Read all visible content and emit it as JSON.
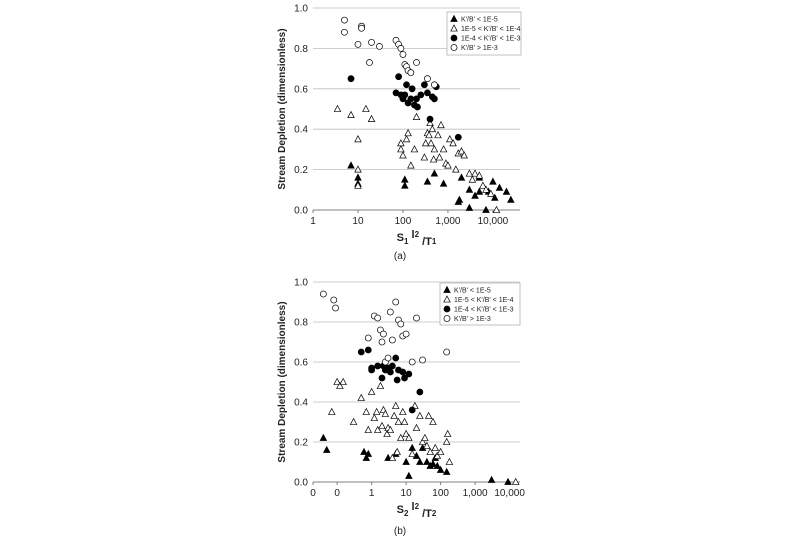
{
  "chart_data": [
    {
      "panel": "(a)",
      "type": "scatter",
      "xscale": "log",
      "xlim": [
        1,
        40000
      ],
      "ylim": [
        0,
        1.0
      ],
      "grid": true,
      "legend_position": "top-right",
      "ylabel": "Stream Depletion (dimensionless)",
      "xlabel": {
        "a": "S",
        "sub1": "1",
        "b": " l",
        "sup": "2",
        "c": " /T",
        "sub2": "1"
      },
      "xticks": [
        {
          "v": 1,
          "label": "1"
        },
        {
          "v": 10,
          "label": "10"
        },
        {
          "v": 100,
          "label": "100"
        },
        {
          "v": 1000,
          "label": "1,000"
        },
        {
          "v": 10000,
          "label": "10,000"
        }
      ],
      "yticks": [
        {
          "v": 0,
          "label": "0.0"
        },
        {
          "v": 0.2,
          "label": "0.2"
        },
        {
          "v": 0.4,
          "label": "0.4"
        },
        {
          "v": 0.6,
          "label": "0.6"
        },
        {
          "v": 0.8,
          "label": "0.8"
        },
        {
          "v": 1.0,
          "label": "1.0"
        }
      ],
      "series": [
        {
          "name": "K'/B' < 1E-5",
          "marker": "triangle-filled",
          "points": [
            [
              7,
              0.22
            ],
            [
              10,
              0.16
            ],
            [
              10,
              0.13
            ],
            [
              110,
              0.15
            ],
            [
              110,
              0.12
            ],
            [
              350,
              0.14
            ],
            [
              500,
              0.18
            ],
            [
              800,
              0.13
            ],
            [
              1700,
              0.04
            ],
            [
              1800,
              0.05
            ],
            [
              2000,
              0.16
            ],
            [
              3000,
              0.1
            ],
            [
              3000,
              0.01
            ],
            [
              4000,
              0.07
            ],
            [
              5000,
              0.09
            ],
            [
              5000,
              0.16
            ],
            [
              7000,
              0.0
            ],
            [
              8000,
              0.09
            ],
            [
              10000,
              0.14
            ],
            [
              11000,
              0.06
            ],
            [
              14000,
              0.11
            ],
            [
              20000,
              0.09
            ],
            [
              25000,
              0.05
            ]
          ]
        },
        {
          "name": "1E-5 < K'/B' < 1E-4",
          "marker": "triangle-open",
          "points": [
            [
              3.5,
              0.5
            ],
            [
              7,
              0.47
            ],
            [
              10,
              0.35
            ],
            [
              10,
              0.12
            ],
            [
              10,
              0.2
            ],
            [
              15,
              0.5
            ],
            [
              20,
              0.45
            ],
            [
              90,
              0.33
            ],
            [
              90,
              0.3
            ],
            [
              100,
              0.27
            ],
            [
              120,
              0.35
            ],
            [
              130,
              0.38
            ],
            [
              150,
              0.22
            ],
            [
              180,
              0.3
            ],
            [
              200,
              0.46
            ],
            [
              300,
              0.26
            ],
            [
              320,
              0.33
            ],
            [
              350,
              0.38
            ],
            [
              380,
              0.37
            ],
            [
              400,
              0.43
            ],
            [
              420,
              0.33
            ],
            [
              450,
              0.4
            ],
            [
              480,
              0.25
            ],
            [
              500,
              0.3
            ],
            [
              600,
              0.37
            ],
            [
              650,
              0.26
            ],
            [
              700,
              0.42
            ],
            [
              800,
              0.3
            ],
            [
              900,
              0.23
            ],
            [
              1000,
              0.22
            ],
            [
              1100,
              0.35
            ],
            [
              1300,
              0.33
            ],
            [
              1500,
              0.2
            ],
            [
              1700,
              0.28
            ],
            [
              2000,
              0.29
            ],
            [
              2300,
              0.27
            ],
            [
              3000,
              0.18
            ],
            [
              3500,
              0.15
            ],
            [
              4000,
              0.18
            ],
            [
              5000,
              0.17
            ],
            [
              6000,
              0.12
            ],
            [
              7000,
              0.1
            ],
            [
              9000,
              0.08
            ],
            [
              12000,
              0.0
            ]
          ]
        },
        {
          "name": "1E-4 < K'/B' < 1E-3",
          "marker": "circle-filled",
          "points": [
            [
              7,
              0.65
            ],
            [
              70,
              0.58
            ],
            [
              80,
              0.66
            ],
            [
              90,
              0.57
            ],
            [
              100,
              0.55
            ],
            [
              110,
              0.57
            ],
            [
              120,
              0.62
            ],
            [
              130,
              0.53
            ],
            [
              150,
              0.55
            ],
            [
              160,
              0.6
            ],
            [
              180,
              0.52
            ],
            [
              200,
              0.55
            ],
            [
              210,
              0.51
            ],
            [
              250,
              0.57
            ],
            [
              300,
              0.62
            ],
            [
              350,
              0.58
            ],
            [
              400,
              0.45
            ],
            [
              450,
              0.56
            ],
            [
              500,
              0.55
            ],
            [
              550,
              0.61
            ],
            [
              1700,
              0.36
            ]
          ]
        },
        {
          "name": "K'/B' > 1E-3",
          "marker": "circle-open",
          "points": [
            [
              5,
              0.94
            ],
            [
              5,
              0.88
            ],
            [
              10,
              0.82
            ],
            [
              12,
              0.91
            ],
            [
              12,
              0.9
            ],
            [
              18,
              0.73
            ],
            [
              20,
              0.83
            ],
            [
              30,
              0.81
            ],
            [
              70,
              0.84
            ],
            [
              80,
              0.82
            ],
            [
              90,
              0.8
            ],
            [
              100,
              0.77
            ],
            [
              110,
              0.72
            ],
            [
              120,
              0.71
            ],
            [
              130,
              0.69
            ],
            [
              150,
              0.68
            ],
            [
              200,
              0.73
            ],
            [
              350,
              0.65
            ],
            [
              500,
              0.62
            ]
          ]
        }
      ]
    },
    {
      "panel": "(b)",
      "type": "scatter",
      "xscale": "log",
      "xlim": [
        0.02,
        20000
      ],
      "ylim": [
        0,
        1.0
      ],
      "grid": true,
      "legend_position": "top-right",
      "ylabel": "Stream Depletion (dimensionless)",
      "xlabel": {
        "a": "S",
        "sub1": "2",
        "b": " l",
        "sup": "2",
        "c": " /T",
        "sub2": "2"
      },
      "xticks": [
        {
          "v": 0.02,
          "label": "0"
        },
        {
          "v": 0.1,
          "label": "0"
        },
        {
          "v": 1,
          "label": "1"
        },
        {
          "v": 10,
          "label": "10"
        },
        {
          "v": 100,
          "label": "100"
        },
        {
          "v": 1000,
          "label": "1,000"
        },
        {
          "v": 10000,
          "label": "10,000"
        }
      ],
      "yticks": [
        {
          "v": 0,
          "label": "0.0"
        },
        {
          "v": 0.2,
          "label": "0.2"
        },
        {
          "v": 0.4,
          "label": "0.4"
        },
        {
          "v": 0.6,
          "label": "0.6"
        },
        {
          "v": 0.8,
          "label": "0.8"
        },
        {
          "v": 1.0,
          "label": "1.0"
        }
      ],
      "series": [
        {
          "name": "K'/B' < 1E-5",
          "marker": "triangle-filled",
          "points": [
            [
              0.04,
              0.22
            ],
            [
              0.05,
              0.16
            ],
            [
              0.6,
              0.15
            ],
            [
              0.8,
              0.14
            ],
            [
              0.7,
              0.12
            ],
            [
              3,
              0.12
            ],
            [
              5,
              0.14
            ],
            [
              10,
              0.1
            ],
            [
              12,
              0.03
            ],
            [
              15,
              0.17
            ],
            [
              20,
              0.13
            ],
            [
              25,
              0.1
            ],
            [
              30,
              0.17
            ],
            [
              40,
              0.1
            ],
            [
              50,
              0.08
            ],
            [
              60,
              0.09
            ],
            [
              70,
              0.12
            ],
            [
              80,
              0.08
            ],
            [
              100,
              0.06
            ],
            [
              150,
              0.05
            ],
            [
              3000,
              0.01
            ],
            [
              9000,
              0.0
            ]
          ]
        },
        {
          "name": "1E-5 < K'/B' < 1E-4",
          "marker": "triangle-open",
          "points": [
            [
              0.07,
              0.35
            ],
            [
              0.1,
              0.5
            ],
            [
              0.12,
              0.48
            ],
            [
              0.15,
              0.5
            ],
            [
              0.3,
              0.3
            ],
            [
              0.5,
              0.42
            ],
            [
              0.7,
              0.35
            ],
            [
              0.8,
              0.26
            ],
            [
              1,
              0.45
            ],
            [
              1.2,
              0.32
            ],
            [
              1.4,
              0.35
            ],
            [
              1.5,
              0.26
            ],
            [
              1.8,
              0.48
            ],
            [
              2,
              0.28
            ],
            [
              2.2,
              0.36
            ],
            [
              2.5,
              0.34
            ],
            [
              2.8,
              0.24
            ],
            [
              3,
              0.27
            ],
            [
              3.5,
              0.26
            ],
            [
              4,
              0.12
            ],
            [
              4.5,
              0.33
            ],
            [
              5,
              0.38
            ],
            [
              5.5,
              0.15
            ],
            [
              6,
              0.3
            ],
            [
              7,
              0.22
            ],
            [
              8,
              0.35
            ],
            [
              9,
              0.3
            ],
            [
              10,
              0.24
            ],
            [
              12,
              0.22
            ],
            [
              15,
              0.14
            ],
            [
              18,
              0.38
            ],
            [
              20,
              0.27
            ],
            [
              25,
              0.33
            ],
            [
              30,
              0.2
            ],
            [
              35,
              0.22
            ],
            [
              40,
              0.18
            ],
            [
              45,
              0.33
            ],
            [
              50,
              0.15
            ],
            [
              60,
              0.3
            ],
            [
              70,
              0.17
            ],
            [
              80,
              0.13
            ],
            [
              100,
              0.15
            ],
            [
              150,
              0.2
            ],
            [
              160,
              0.24
            ],
            [
              180,
              0.1
            ],
            [
              15000,
              0.0
            ]
          ]
        },
        {
          "name": "1E-4 < K'/B' < 1E-3",
          "marker": "circle-filled",
          "points": [
            [
              0.5,
              0.65
            ],
            [
              0.8,
              0.66
            ],
            [
              1,
              0.57
            ],
            [
              1,
              0.56
            ],
            [
              1.5,
              0.58
            ],
            [
              2,
              0.52
            ],
            [
              2.2,
              0.58
            ],
            [
              2.5,
              0.56
            ],
            [
              3,
              0.57
            ],
            [
              3.2,
              0.56
            ],
            [
              3.5,
              0.55
            ],
            [
              4,
              0.58
            ],
            [
              5,
              0.62
            ],
            [
              5.5,
              0.51
            ],
            [
              6,
              0.56
            ],
            [
              8,
              0.55
            ],
            [
              9,
              0.52
            ],
            [
              12,
              0.54
            ],
            [
              15,
              0.36
            ],
            [
              25,
              0.45
            ]
          ]
        },
        {
          "name": "K'/B' > 1E-3",
          "marker": "circle-open",
          "points": [
            [
              0.04,
              0.94
            ],
            [
              0.08,
              0.91
            ],
            [
              0.09,
              0.87
            ],
            [
              0.8,
              0.72
            ],
            [
              1.2,
              0.83
            ],
            [
              1.5,
              0.82
            ],
            [
              1.8,
              0.76
            ],
            [
              2,
              0.7
            ],
            [
              2.2,
              0.74
            ],
            [
              2.5,
              0.6
            ],
            [
              3,
              0.62
            ],
            [
              3.5,
              0.85
            ],
            [
              4,
              0.71
            ],
            [
              5,
              0.9
            ],
            [
              6,
              0.81
            ],
            [
              7,
              0.79
            ],
            [
              8,
              0.73
            ],
            [
              10,
              0.74
            ],
            [
              15,
              0.6
            ],
            [
              20,
              0.82
            ],
            [
              30,
              0.61
            ],
            [
              150,
              0.65
            ]
          ]
        }
      ]
    }
  ],
  "captions": [
    "(a)",
    "(b)"
  ]
}
